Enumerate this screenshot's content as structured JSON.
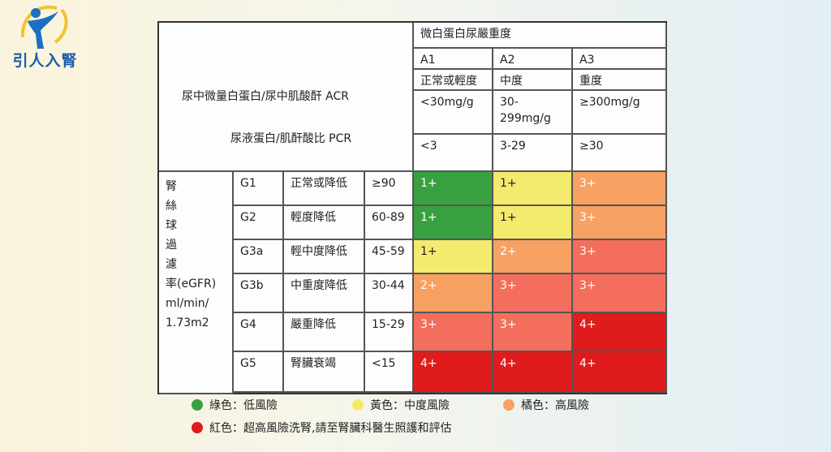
{
  "brand": {
    "name": "引人入腎"
  },
  "colors": {
    "green": "#39a041",
    "yellow": "#f4ea6e",
    "orange": "#f7a163",
    "red_orange": "#f36e5c",
    "red": "#e01b1b"
  },
  "table": {
    "albuminuria_header": "微白蛋白尿嚴重度",
    "ratio_label_1": "尿中微量白蛋白/尿中肌酸酐 ACR",
    "ratio_label_2": "尿液蛋白/肌酐酸比 PCR",
    "a_columns": [
      {
        "code": "A1",
        "desc": "正常或輕度",
        "acr": "<30mg/g",
        "pcr": "<3"
      },
      {
        "code": "A2",
        "desc": "中度",
        "acr": "30-299mg/g",
        "pcr": "3-29"
      },
      {
        "code": "A3",
        "desc": "重度",
        "acr": "≥300mg/g",
        "pcr": "≥30"
      }
    ],
    "egfr_label": [
      "腎",
      "絲",
      "球",
      "過",
      "濾",
      "率(eGFR)",
      "ml/min/",
      "1.73m2"
    ],
    "rows": [
      {
        "stage": "G1",
        "desc": "正常或降低",
        "range": "≥90",
        "cells": [
          {
            "label": "1+",
            "color": "#39a041"
          },
          {
            "label": "1+",
            "color": "#f4ea6e"
          },
          {
            "label": "3+",
            "color": "#f7a163"
          }
        ]
      },
      {
        "stage": "G2",
        "desc": "輕度降低",
        "range": "60-89",
        "cells": [
          {
            "label": "1+",
            "color": "#39a041"
          },
          {
            "label": "1+",
            "color": "#f4ea6e"
          },
          {
            "label": "3+",
            "color": "#f7a163"
          }
        ]
      },
      {
        "stage": "G3a",
        "desc": "輕中度降低",
        "range": "45-59",
        "cells": [
          {
            "label": "1+",
            "color": "#f4ea6e"
          },
          {
            "label": "2+",
            "color": "#f7a163"
          },
          {
            "label": "3+",
            "color": "#f36e5c"
          }
        ]
      },
      {
        "stage": "G3b",
        "desc": "中重度降低",
        "range": "30-44",
        "cells": [
          {
            "label": "2+",
            "color": "#f7a163"
          },
          {
            "label": "3+",
            "color": "#f36e5c"
          },
          {
            "label": "3+",
            "color": "#f36e5c"
          }
        ]
      },
      {
        "stage": "G4",
        "desc": "嚴重降低",
        "range": "15-29",
        "cells": [
          {
            "label": "3+",
            "color": "#f36e5c"
          },
          {
            "label": "3+",
            "color": "#f36e5c"
          },
          {
            "label": "4+",
            "color": "#e01b1b"
          }
        ]
      },
      {
        "stage": "G5",
        "desc": "腎臟衰竭",
        "range": "<15",
        "cells": [
          {
            "label": "4+",
            "color": "#e01b1b"
          },
          {
            "label": "4+",
            "color": "#e01b1b"
          },
          {
            "label": "4+",
            "color": "#e01b1b"
          }
        ]
      }
    ]
  },
  "legend": [
    {
      "text": "綠色：低風險",
      "color": "#39a041"
    },
    {
      "text": "黃色：中度風險",
      "color": "#f4ea6e"
    },
    {
      "text": "橘色：高風險",
      "color": "#f7a163"
    },
    {
      "text": "紅色：超高風險洗腎,請至腎臟科醫生照護和評估",
      "color": "#e01b1b"
    }
  ]
}
